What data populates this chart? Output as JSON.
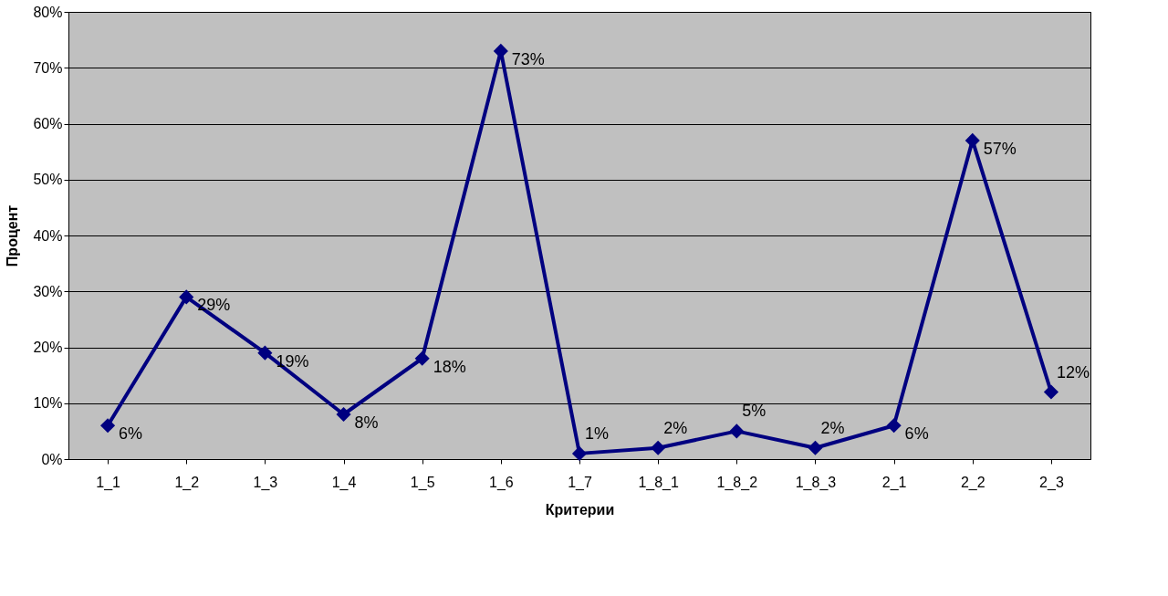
{
  "chart_data": {
    "type": "line",
    "xlabel": "Критерии",
    "ylabel": "Процент",
    "categories": [
      "1_1",
      "1_2",
      "1_3",
      "1_4",
      "1_5",
      "1_6",
      "1_7",
      "1_8_1",
      "1_8_2",
      "1_8_3",
      "2_1",
      "2_2",
      "2_3"
    ],
    "series": [
      {
        "color": "#000080",
        "values": [
          6,
          29,
          19,
          8,
          18,
          73,
          1,
          2,
          5,
          2,
          6,
          57,
          12
        ],
        "value_labels": [
          "6%",
          "29%",
          "19%",
          "8%",
          "18%",
          "73%",
          "1%",
          "2%",
          "5%",
          "2%",
          "6%",
          "57%",
          "12%"
        ]
      }
    ],
    "ylim": [
      0,
      80
    ],
    "yticks": [
      {
        "value": 0,
        "label": "0%"
      },
      {
        "value": 10,
        "label": "10%"
      },
      {
        "value": 20,
        "label": "20%"
      },
      {
        "value": 30,
        "label": "30%"
      },
      {
        "value": 40,
        "label": "40%"
      },
      {
        "value": 50,
        "label": "50%"
      },
      {
        "value": 60,
        "label": "60%"
      },
      {
        "value": 70,
        "label": "70%"
      },
      {
        "value": 80,
        "label": "80%"
      }
    ],
    "grid": "y",
    "legend": false,
    "marker": "diamond",
    "line_style": "solid"
  }
}
